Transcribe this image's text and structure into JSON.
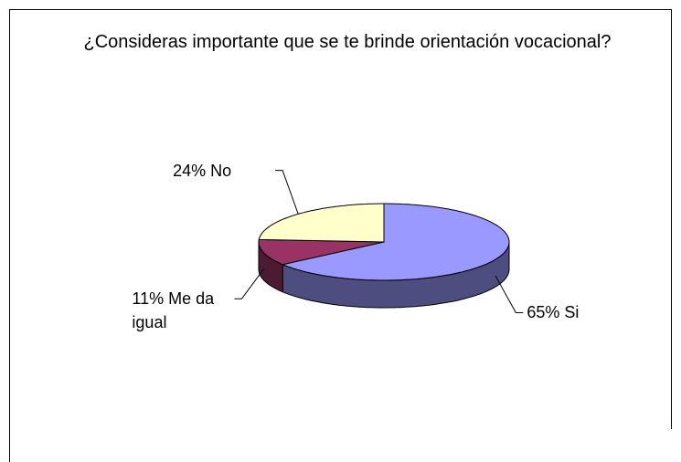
{
  "chart_data": {
    "type": "pie",
    "title": "¿Consideras importante que se te brinde orientación vocacional?",
    "categories": [
      "Si",
      "Me da igual",
      "No"
    ],
    "values": [
      65,
      11,
      24
    ],
    "value_labels": [
      "65%",
      "11%",
      "24%"
    ],
    "colors": [
      "#9999ff",
      "#993366",
      "#ffffcc"
    ],
    "three_d": true
  }
}
